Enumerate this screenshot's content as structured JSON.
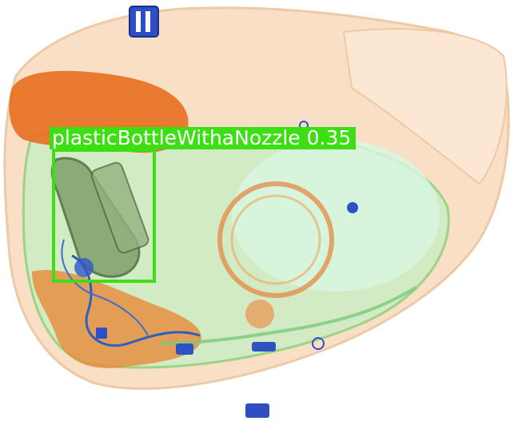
{
  "detections": [
    {
      "class": "plasticBottleWithaNozzle",
      "score": "0.35"
    }
  ],
  "colors": {
    "box": "#3bdf12",
    "label_text": "#ffffff"
  }
}
